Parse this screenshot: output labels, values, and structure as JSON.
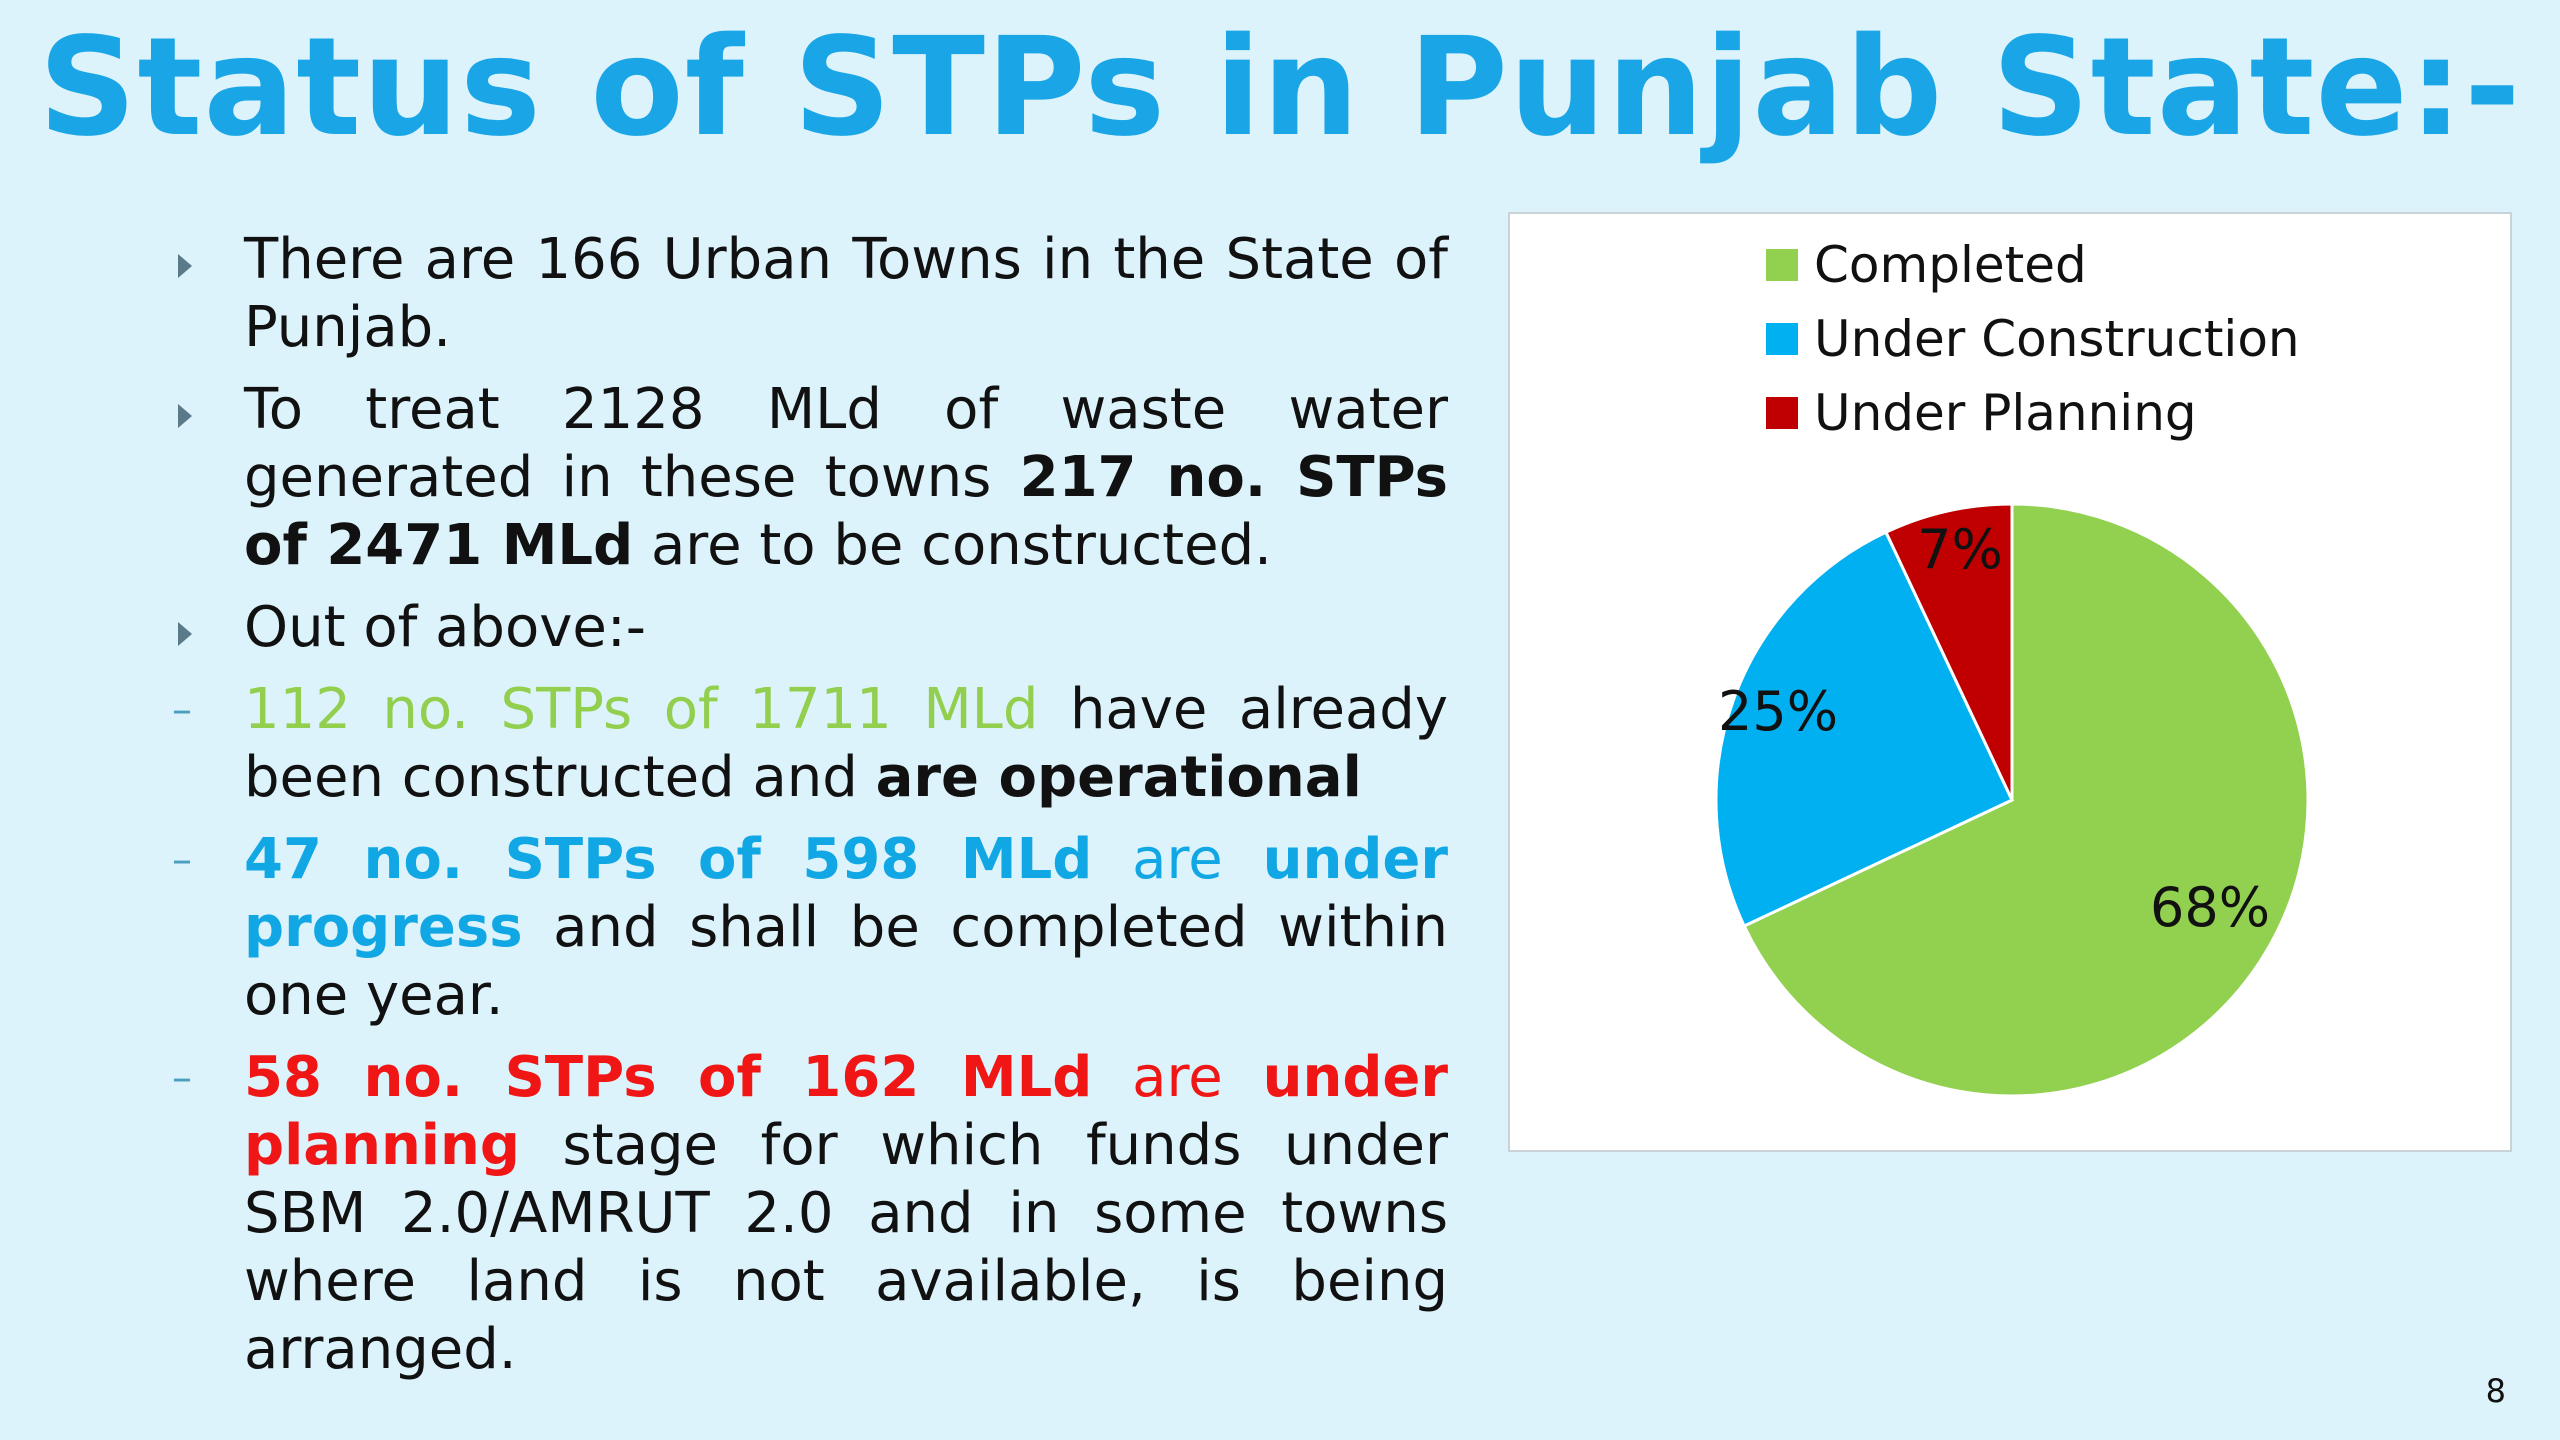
{
  "title": "Status of STPs in Punjab State:-",
  "bullets": [
    {
      "marker": "triangle",
      "segments": [
        {
          "text": "There are 166 Urban Towns in the State of Punjab.",
          "style": ""
        }
      ]
    },
    {
      "marker": "triangle",
      "segments": [
        {
          "text": "To treat 2128 MLd of waste water generated in these towns ",
          "style": ""
        },
        {
          "text": "217 no. STPs of 2471 MLd",
          "style": "b"
        },
        {
          "text": " are to be constructed.",
          "style": ""
        }
      ]
    },
    {
      "marker": "triangle",
      "segments": [
        {
          "text": "Out of above:-",
          "style": ""
        }
      ]
    },
    {
      "marker": "dash",
      "segments": [
        {
          "text": "112 no. STPs of 1711 MLd",
          "style": "green"
        },
        {
          "text": " have already been constructed and ",
          "style": ""
        },
        {
          "text": "are operational",
          "style": "b"
        }
      ]
    },
    {
      "marker": "dash",
      "segments": [
        {
          "text": " 47 no. STPs of 598 MLd",
          "style": "blue b"
        },
        {
          "text": " are ",
          "style": "blue"
        },
        {
          "text": "under progress",
          "style": "blue b"
        },
        {
          "text": " and shall be completed within one year.",
          "style": ""
        }
      ]
    },
    {
      "marker": "dash",
      "segments": [
        {
          "text": "58 no. STPs of 162 MLd",
          "style": "red b"
        },
        {
          "text": " are ",
          "style": "red"
        },
        {
          "text": "under planning",
          "style": "red b"
        },
        {
          "text": " stage for which funds under SBM 2.0/AMRUT 2.0 and in some towns where land is not available, is being arranged.",
          "style": ""
        }
      ]
    }
  ],
  "chart_data": {
    "type": "pie",
    "categories": [
      "Completed",
      "Under Construction",
      "Under Planning"
    ],
    "values": [
      68,
      25,
      7
    ],
    "labels": [
      "68%",
      "25%",
      "7%"
    ],
    "colors": [
      "#92d050",
      "#00b0f0",
      "#c00000"
    ],
    "legend_position": "top"
  },
  "page_number": "8"
}
